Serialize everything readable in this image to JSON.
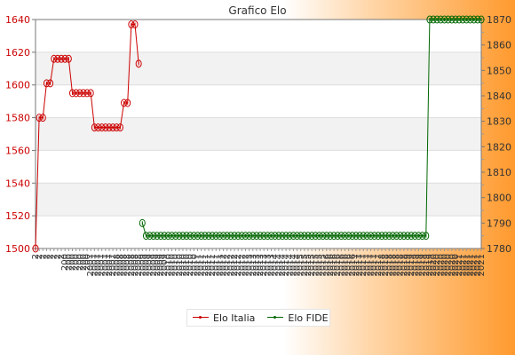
{
  "chart_data": {
    "type": "line",
    "title": "Grafico Elo",
    "dual_axis": true,
    "left_axis": {
      "ylim": [
        1500,
        1640
      ],
      "ticks": [
        1500,
        1520,
        1540,
        1560,
        1580,
        1600,
        1620,
        1640
      ],
      "color": "#cc0000"
    },
    "right_axis": {
      "ylim": [
        1780,
        1870
      ],
      "ticks": [
        1780,
        1790,
        1800,
        1810,
        1820,
        1830,
        1840,
        1850,
        1860,
        1870
      ],
      "color": "#333333"
    },
    "x_label_prefixes": [
      "2",
      "200",
      "2007",
      "2008",
      "2009",
      "2010",
      "2011",
      "2012",
      "2013",
      "2014",
      "2015",
      "2016",
      "2017",
      "2018",
      "2019",
      "2020",
      "2021"
    ],
    "grid": true,
    "legend_position": "bottom",
    "series": [
      {
        "name": "Elo Italia",
        "axis": "left",
        "color": "#cc0000",
        "points": [
          [
            0,
            1500
          ],
          [
            1,
            1580
          ],
          [
            2,
            1580
          ],
          [
            3,
            1601
          ],
          [
            4,
            1601
          ],
          [
            5,
            1616
          ],
          [
            6,
            1616
          ],
          [
            7,
            1616
          ],
          [
            8,
            1616
          ],
          [
            9,
            1616
          ],
          [
            10,
            1595
          ],
          [
            11,
            1595
          ],
          [
            12,
            1595
          ],
          [
            13,
            1595
          ],
          [
            14,
            1595
          ],
          [
            15,
            1595
          ],
          [
            16,
            1574
          ],
          [
            17,
            1574
          ],
          [
            18,
            1574
          ],
          [
            19,
            1574
          ],
          [
            20,
            1574
          ],
          [
            21,
            1574
          ],
          [
            22,
            1574
          ],
          [
            23,
            1574
          ],
          [
            24,
            1589
          ],
          [
            25,
            1589
          ],
          [
            26,
            1637
          ],
          [
            27,
            1637
          ],
          [
            28,
            1613
          ]
        ]
      },
      {
        "name": "Elo FIDE",
        "axis": "right",
        "color": "#006600",
        "points": [
          [
            29,
            1790
          ],
          [
            30,
            1785
          ],
          [
            31,
            1785
          ],
          [
            32,
            1785
          ],
          [
            33,
            1785
          ],
          [
            34,
            1785
          ],
          [
            35,
            1785
          ],
          [
            36,
            1785
          ],
          [
            37,
            1785
          ],
          [
            38,
            1785
          ],
          [
            39,
            1785
          ],
          [
            40,
            1785
          ],
          [
            41,
            1785
          ],
          [
            42,
            1785
          ],
          [
            43,
            1785
          ],
          [
            44,
            1785
          ],
          [
            45,
            1785
          ],
          [
            46,
            1785
          ],
          [
            47,
            1785
          ],
          [
            48,
            1785
          ],
          [
            49,
            1785
          ],
          [
            50,
            1785
          ],
          [
            51,
            1785
          ],
          [
            52,
            1785
          ],
          [
            53,
            1785
          ],
          [
            54,
            1785
          ],
          [
            55,
            1785
          ],
          [
            56,
            1785
          ],
          [
            57,
            1785
          ],
          [
            58,
            1785
          ],
          [
            59,
            1785
          ],
          [
            60,
            1785
          ],
          [
            61,
            1785
          ],
          [
            62,
            1785
          ],
          [
            63,
            1785
          ],
          [
            64,
            1785
          ],
          [
            65,
            1785
          ],
          [
            66,
            1785
          ],
          [
            67,
            1785
          ],
          [
            68,
            1785
          ],
          [
            69,
            1785
          ],
          [
            70,
            1785
          ],
          [
            71,
            1785
          ],
          [
            72,
            1785
          ],
          [
            73,
            1785
          ],
          [
            74,
            1785
          ],
          [
            75,
            1785
          ],
          [
            76,
            1785
          ],
          [
            77,
            1785
          ],
          [
            78,
            1785
          ],
          [
            79,
            1785
          ],
          [
            80,
            1785
          ],
          [
            81,
            1785
          ],
          [
            82,
            1785
          ],
          [
            83,
            1785
          ],
          [
            84,
            1785
          ],
          [
            85,
            1785
          ],
          [
            86,
            1785
          ],
          [
            87,
            1785
          ],
          [
            88,
            1785
          ],
          [
            89,
            1785
          ],
          [
            90,
            1785
          ],
          [
            91,
            1785
          ],
          [
            92,
            1785
          ],
          [
            93,
            1785
          ],
          [
            94,
            1785
          ],
          [
            95,
            1785
          ],
          [
            96,
            1785
          ],
          [
            97,
            1785
          ],
          [
            98,
            1785
          ],
          [
            99,
            1785
          ],
          [
            100,
            1785
          ],
          [
            101,
            1785
          ],
          [
            102,
            1785
          ],
          [
            103,
            1785
          ],
          [
            104,
            1785
          ],
          [
            105,
            1785
          ],
          [
            106,
            1785
          ],
          [
            107,
            1870
          ],
          [
            108,
            1870
          ],
          [
            109,
            1870
          ],
          [
            110,
            1870
          ],
          [
            111,
            1870
          ],
          [
            112,
            1870
          ],
          [
            113,
            1870
          ],
          [
            114,
            1870
          ],
          [
            115,
            1870
          ],
          [
            116,
            1870
          ],
          [
            117,
            1870
          ],
          [
            118,
            1870
          ],
          [
            119,
            1870
          ],
          [
            120,
            1870
          ],
          [
            121,
            1870
          ]
        ]
      }
    ]
  }
}
